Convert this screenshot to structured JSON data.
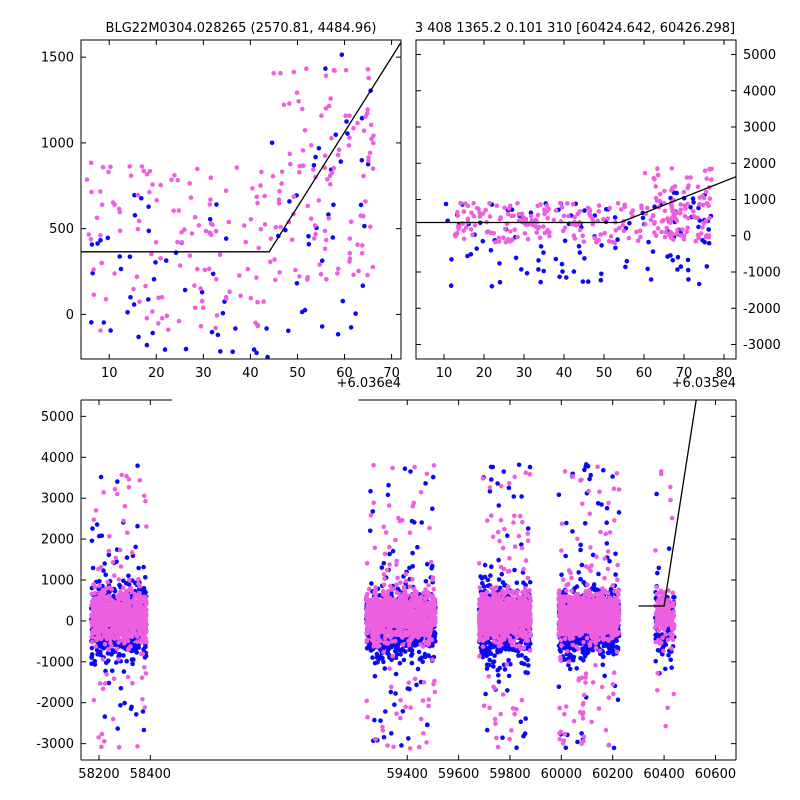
{
  "colors": {
    "blue": "#0a0af0",
    "magenta": "#ee5fe0",
    "line": "#000000"
  },
  "chart_data": [
    {
      "type": "scatter",
      "title": "BLG22M0304.028265 (2570.81, 4484.96)",
      "offset_label": "+6.036e4",
      "xlim": [
        4,
        72
      ],
      "ylim": [
        -260,
        1600
      ],
      "xticks": [
        10,
        20,
        30,
        40,
        50,
        60,
        70
      ],
      "yticks": [
        0,
        500,
        1000,
        1500
      ],
      "yaxis_side": "left",
      "model_line": [
        [
          4,
          365
        ],
        [
          44,
          365
        ],
        [
          73,
          1630
        ]
      ],
      "series": [
        {
          "color_key": "blue",
          "seed": 11,
          "clusters": [
            {
              "x": [
                5,
                42
              ],
              "y": [
                -250,
                700
              ],
              "n": 45
            },
            {
              "x": [
                42,
                66
              ],
              "y": [
                -250,
                1580
              ],
              "n": 40
            }
          ]
        },
        {
          "color_key": "magenta",
          "seed": 29,
          "clusters": [
            {
              "x": [
                5,
                44
              ],
              "y": [
                -100,
                900
              ],
              "n": 120
            },
            {
              "x": [
                44,
                67
              ],
              "y": [
                200,
                1450
              ],
              "n": 110
            }
          ]
        }
      ]
    },
    {
      "type": "scatter",
      "title": "3 408 1365.2 0.101 310 [60424.642, 60426.298]",
      "offset_label": "+6.035e4",
      "xlim": [
        3,
        83
      ],
      "ylim": [
        -3400,
        5400
      ],
      "xticks": [
        10,
        20,
        30,
        40,
        50,
        60,
        70,
        80
      ],
      "yticks": [
        -3000,
        -2000,
        -1000,
        0,
        1000,
        2000,
        3000,
        4000,
        5000
      ],
      "yaxis_side": "right",
      "model_line": [
        [
          3,
          365
        ],
        [
          54,
          365
        ],
        [
          83,
          1630
        ]
      ],
      "series": [
        {
          "color_key": "blue",
          "seed": 7,
          "clusters": [
            {
              "x": [
                10,
                77
              ],
              "y": [
                -1400,
                900
              ],
              "n": 95
            },
            {
              "x": [
                66,
                77
              ],
              "y": [
                -700,
                1300
              ],
              "n": 25
            }
          ]
        },
        {
          "color_key": "magenta",
          "seed": 41,
          "clusters": [
            {
              "x": [
                12,
                77
              ],
              "y": [
                -200,
                900
              ],
              "n": 230
            },
            {
              "x": [
                60,
                77
              ],
              "y": [
                300,
                1900
              ],
              "n": 50
            }
          ]
        }
      ]
    },
    {
      "type": "scatter",
      "title": "",
      "xlim": [
        58130,
        60680
      ],
      "ylim": [
        -3400,
        5400
      ],
      "xticks": [
        58200,
        58400,
        59400,
        59600,
        59800,
        60000,
        60200,
        60400,
        60600
      ],
      "yticks": [
        -3000,
        -2000,
        -1000,
        0,
        1000,
        2000,
        3000,
        4000,
        5000
      ],
      "yaxis_side": "left",
      "break_between": [
        58485,
        59210
      ],
      "model_line": [
        [
          60300,
          365
        ],
        [
          60400,
          365
        ],
        [
          60525,
          5400
        ]
      ],
      "series": [
        {
          "color_key": "blue",
          "seed": 3,
          "seasons": [
            [
              58170,
              58385,
              650
            ],
            [
              59240,
              59510,
              750
            ],
            [
              59680,
              59880,
              700
            ],
            [
              59990,
              60225,
              800
            ],
            [
              60365,
              60440,
              120
            ]
          ]
        },
        {
          "color_key": "magenta",
          "seed": 19,
          "seasons": [
            [
              58170,
              58385,
              900
            ],
            [
              59240,
              59510,
              1000
            ],
            [
              59680,
              59880,
              950
            ],
            [
              59990,
              60225,
              1050
            ],
            [
              60365,
              60440,
              180
            ]
          ]
        }
      ]
    }
  ]
}
